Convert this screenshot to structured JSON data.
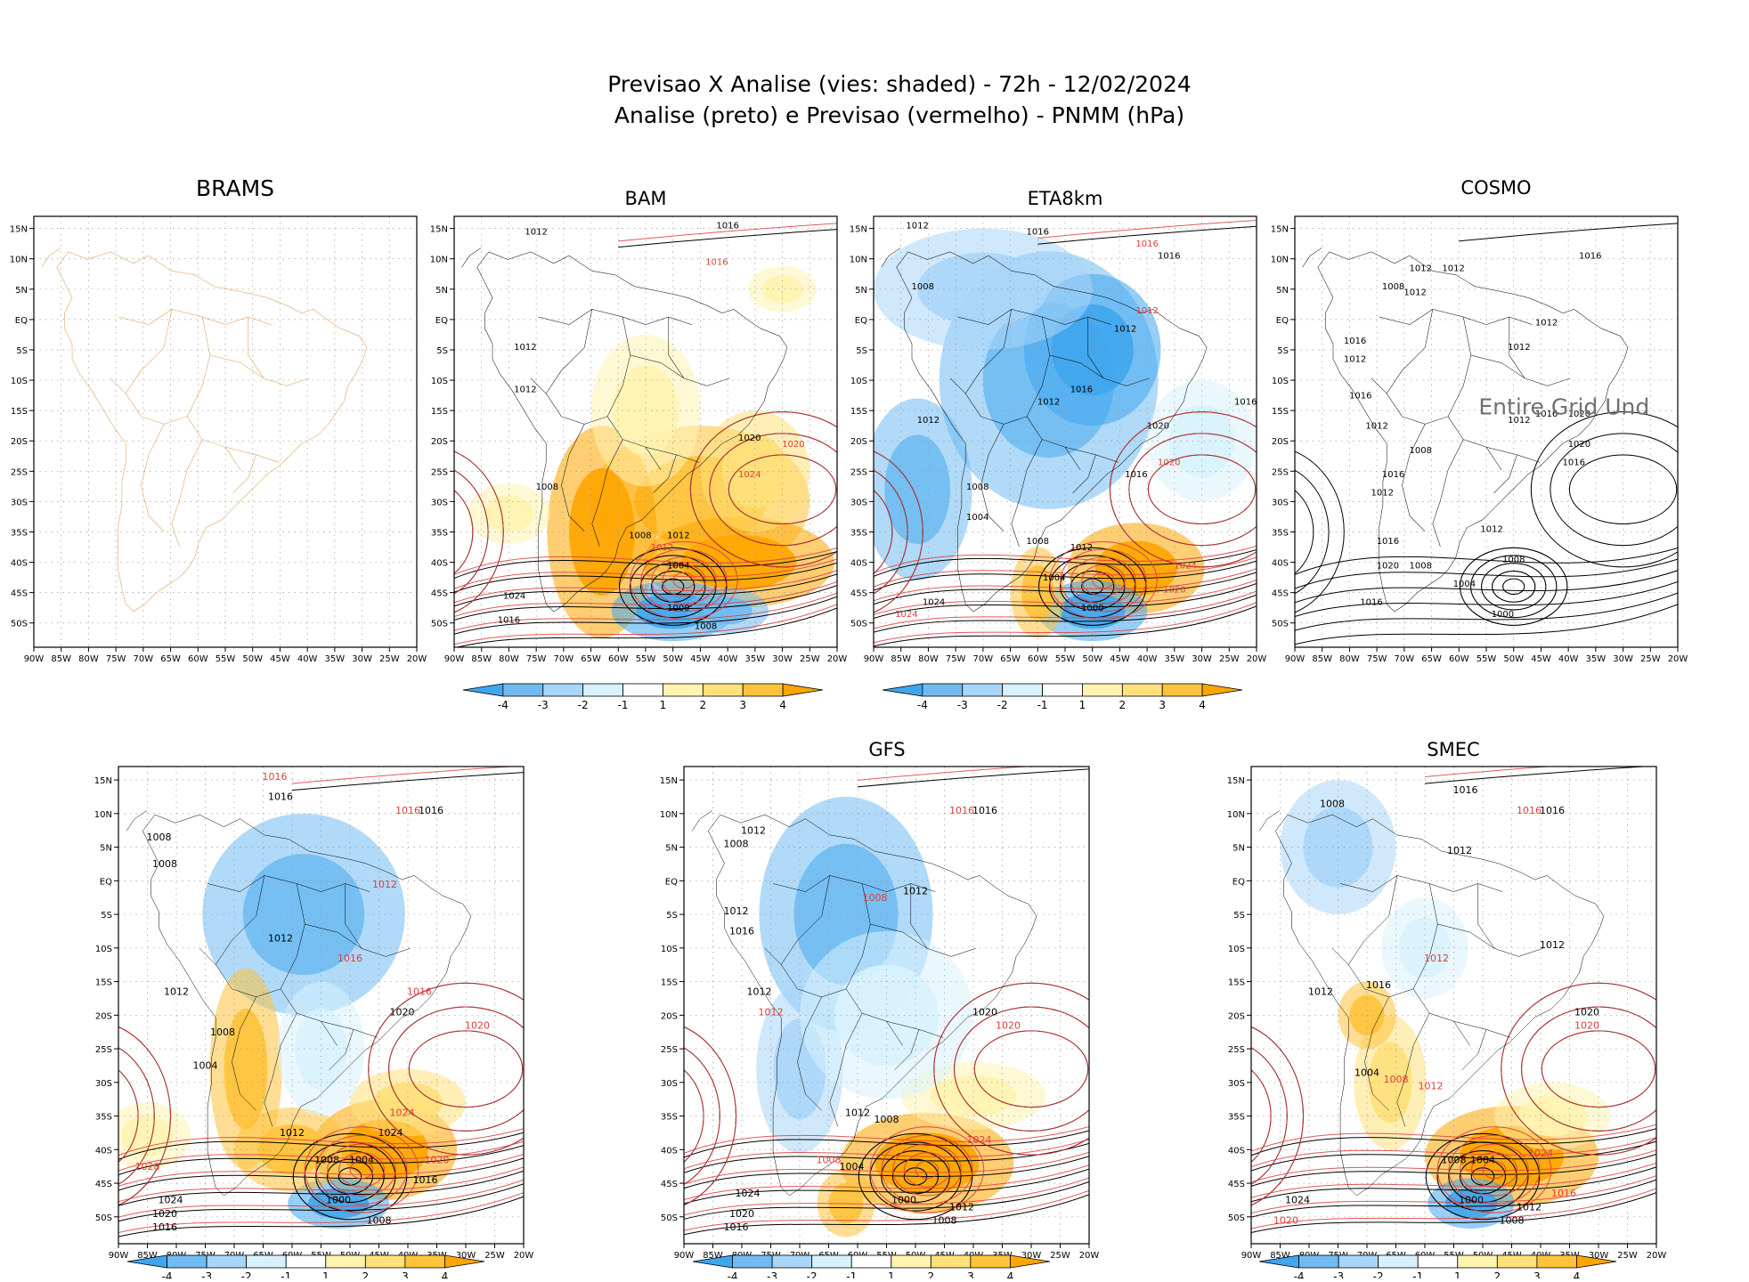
{
  "title": {
    "line1": "Previsao X Analise (vies: shaded) - 72h - 12/02/2024",
    "line2": "Analise (preto) e Previsao (vermelho) - PNMM (hPa)"
  },
  "lat_labels": [
    "15N",
    "10N",
    "5N",
    "EQ",
    "5S",
    "10S",
    "15S",
    "20S",
    "25S",
    "30S",
    "35S",
    "40S",
    "45S",
    "50S"
  ],
  "lon_labels": [
    "90W",
    "85W",
    "80W",
    "75W",
    "70W",
    "65W",
    "60W",
    "55W",
    "50W",
    "45W",
    "40W",
    "35W",
    "30W",
    "25W",
    "20W"
  ],
  "colorbar": {
    "labels": [
      "-4",
      "-3",
      "-2",
      "-1",
      "1",
      "2",
      "3",
      "4"
    ],
    "colors": [
      "#3fa6ee",
      "#6fbbf2",
      "#a9d6f8",
      "#d8f2fd",
      "#ffffff",
      "#fff3b0",
      "#ffe07a",
      "#ffc33b",
      "#ffa500"
    ]
  },
  "colors": {
    "analysis": "#000000",
    "forecast": "#e03c3c",
    "border": "#e09040",
    "note": "#707070"
  },
  "panels": [
    {
      "id": "brams",
      "title": "BRAMS",
      "note": "",
      "labels": []
    },
    {
      "id": "bam",
      "title": "BAM",
      "note": "",
      "labels": [
        {
          "t": "1016",
          "c": "a",
          "x": -40,
          "y": 15
        },
        {
          "t": "1016",
          "c": "f",
          "x": -42,
          "y": 9
        },
        {
          "t": "1012",
          "c": "a",
          "x": -75,
          "y": 14
        },
        {
          "t": "1012",
          "c": "a",
          "x": -77,
          "y": -5
        },
        {
          "t": "1012",
          "c": "a",
          "x": -77,
          "y": -12
        },
        {
          "t": "1020",
          "c": "a",
          "x": -36,
          "y": -20
        },
        {
          "t": "1020",
          "c": "f",
          "x": -28,
          "y": -21
        },
        {
          "t": "1024",
          "c": "f",
          "x": -36,
          "y": -26
        },
        {
          "t": "1008",
          "c": "a",
          "x": -73,
          "y": -28
        },
        {
          "t": "1008",
          "c": "a",
          "x": -56,
          "y": -36
        },
        {
          "t": "1012",
          "c": "a",
          "x": -49,
          "y": -36
        },
        {
          "t": "1004",
          "c": "a",
          "x": -49,
          "y": -41
        },
        {
          "t": "1000",
          "c": "a",
          "x": -49,
          "y": -48
        },
        {
          "t": "1008",
          "c": "a",
          "x": -44,
          "y": -51
        },
        {
          "t": "1024",
          "c": "a",
          "x": -79,
          "y": -46
        },
        {
          "t": "1016",
          "c": "a",
          "x": -80,
          "y": -50
        },
        {
          "t": "1012",
          "c": "f",
          "x": -52,
          "y": -38
        }
      ]
    },
    {
      "id": "eta8km",
      "title": "ETA8km",
      "note": "",
      "labels": [
        {
          "t": "1012",
          "c": "a",
          "x": -82,
          "y": 15
        },
        {
          "t": "1016",
          "c": "a",
          "x": -60,
          "y": 14
        },
        {
          "t": "1016",
          "c": "f",
          "x": -40,
          "y": 12
        },
        {
          "t": "1016",
          "c": "a",
          "x": -36,
          "y": 10
        },
        {
          "t": "1008",
          "c": "a",
          "x": -81,
          "y": 5
        },
        {
          "t": "1012",
          "c": "f",
          "x": -40,
          "y": 1
        },
        {
          "t": "1012",
          "c": "a",
          "x": -44,
          "y": -2
        },
        {
          "t": "1016",
          "c": "a",
          "x": -52,
          "y": -12
        },
        {
          "t": "1012",
          "c": "a",
          "x": -58,
          "y": -14
        },
        {
          "t": "1016",
          "c": "a",
          "x": -22,
          "y": -14
        },
        {
          "t": "1012",
          "c": "a",
          "x": -80,
          "y": -17
        },
        {
          "t": "1020",
          "c": "a",
          "x": -38,
          "y": -18
        },
        {
          "t": "1020",
          "c": "f",
          "x": -36,
          "y": -24
        },
        {
          "t": "1016",
          "c": "a",
          "x": -42,
          "y": -26
        },
        {
          "t": "1008",
          "c": "a",
          "x": -71,
          "y": -28
        },
        {
          "t": "1004",
          "c": "a",
          "x": -71,
          "y": -33
        },
        {
          "t": "1008",
          "c": "a",
          "x": -60,
          "y": -37
        },
        {
          "t": "1012",
          "c": "a",
          "x": -52,
          "y": -38
        },
        {
          "t": "1004",
          "c": "a",
          "x": -57,
          "y": -43
        },
        {
          "t": "1000",
          "c": "a",
          "x": -50,
          "y": -48
        },
        {
          "t": "1024",
          "c": "f",
          "x": -33,
          "y": -41
        },
        {
          "t": "1020",
          "c": "f",
          "x": -35,
          "y": -45
        },
        {
          "t": "1024",
          "c": "a",
          "x": -79,
          "y": -47
        },
        {
          "t": "1024",
          "c": "f",
          "x": -84,
          "y": -49
        }
      ]
    },
    {
      "id": "cosmo",
      "title": "COSMO",
      "note": "Entire Grid Und",
      "labels": [
        {
          "t": "1016",
          "c": "a",
          "x": -36,
          "y": 10
        },
        {
          "t": "1012",
          "c": "a",
          "x": -67,
          "y": 8
        },
        {
          "t": "1012",
          "c": "a",
          "x": -61,
          "y": 8
        },
        {
          "t": "1012",
          "c": "a",
          "x": -68,
          "y": 4
        },
        {
          "t": "1008",
          "c": "a",
          "x": -72,
          "y": 5
        },
        {
          "t": "1012",
          "c": "a",
          "x": -44,
          "y": -1
        },
        {
          "t": "1012",
          "c": "a",
          "x": -49,
          "y": -5
        },
        {
          "t": "1016",
          "c": "a",
          "x": -79,
          "y": -4
        },
        {
          "t": "1012",
          "c": "a",
          "x": -79,
          "y": -7
        },
        {
          "t": "1016",
          "c": "a",
          "x": -78,
          "y": -13
        },
        {
          "t": "1016",
          "c": "a",
          "x": -44,
          "y": -16
        },
        {
          "t": "1012",
          "c": "a",
          "x": -49,
          "y": -17
        },
        {
          "t": "1020",
          "c": "a",
          "x": -38,
          "y": -16
        },
        {
          "t": "1020",
          "c": "a",
          "x": -38,
          "y": -21
        },
        {
          "t": "1016",
          "c": "a",
          "x": -39,
          "y": -24
        },
        {
          "t": "1012",
          "c": "a",
          "x": -75,
          "y": -18
        },
        {
          "t": "1008",
          "c": "a",
          "x": -67,
          "y": -22
        },
        {
          "t": "1016",
          "c": "a",
          "x": -72,
          "y": -26
        },
        {
          "t": "1012",
          "c": "a",
          "x": -74,
          "y": -29
        },
        {
          "t": "1012",
          "c": "a",
          "x": -54,
          "y": -35
        },
        {
          "t": "1016",
          "c": "a",
          "x": -73,
          "y": -37
        },
        {
          "t": "1020",
          "c": "a",
          "x": -73,
          "y": -41
        },
        {
          "t": "1008",
          "c": "a",
          "x": -67,
          "y": -41
        },
        {
          "t": "1008",
          "c": "a",
          "x": -50,
          "y": -40
        },
        {
          "t": "1004",
          "c": "a",
          "x": -59,
          "y": -44
        },
        {
          "t": "1000",
          "c": "a",
          "x": -52,
          "y": -49
        },
        {
          "t": "1016",
          "c": "a",
          "x": -76,
          "y": -47
        }
      ]
    },
    {
      "id": "panel5",
      "title": "",
      "note": "",
      "labels": [
        {
          "t": "1016",
          "c": "f",
          "x": -63,
          "y": 15
        },
        {
          "t": "1016",
          "c": "a",
          "x": -62,
          "y": 12
        },
        {
          "t": "1016",
          "c": "f",
          "x": -40,
          "y": 10
        },
        {
          "t": "1016",
          "c": "a",
          "x": -36,
          "y": 10
        },
        {
          "t": "1008",
          "c": "a",
          "x": -83,
          "y": 6
        },
        {
          "t": "1008",
          "c": "a",
          "x": -82,
          "y": 2
        },
        {
          "t": "1012",
          "c": "f",
          "x": -44,
          "y": -1
        },
        {
          "t": "1012",
          "c": "a",
          "x": -62,
          "y": -9
        },
        {
          "t": "1016",
          "c": "f",
          "x": -50,
          "y": -12
        },
        {
          "t": "1016",
          "c": "f",
          "x": -38,
          "y": -17
        },
        {
          "t": "1012",
          "c": "a",
          "x": -80,
          "y": -17
        },
        {
          "t": "1020",
          "c": "a",
          "x": -41,
          "y": -20
        },
        {
          "t": "1020",
          "c": "f",
          "x": -28,
          "y": -22
        },
        {
          "t": "1008",
          "c": "a",
          "x": -72,
          "y": -23
        },
        {
          "t": "1004",
          "c": "a",
          "x": -75,
          "y": -28
        },
        {
          "t": "1024",
          "c": "f",
          "x": -41,
          "y": -35
        },
        {
          "t": "1012",
          "c": "a",
          "x": -60,
          "y": -38
        },
        {
          "t": "1024",
          "c": "a",
          "x": -43,
          "y": -38
        },
        {
          "t": "1008",
          "c": "a",
          "x": -54,
          "y": -42
        },
        {
          "t": "1004",
          "c": "a",
          "x": -48,
          "y": -42
        },
        {
          "t": "1000",
          "c": "a",
          "x": -52,
          "y": -48
        },
        {
          "t": "1016",
          "c": "a",
          "x": -37,
          "y": -45
        },
        {
          "t": "1020",
          "c": "f",
          "x": -35,
          "y": -42
        },
        {
          "t": "1028",
          "c": "f",
          "x": -85,
          "y": -43
        },
        {
          "t": "1024",
          "c": "a",
          "x": -81,
          "y": -48
        },
        {
          "t": "1020",
          "c": "a",
          "x": -82,
          "y": -50
        },
        {
          "t": "1016",
          "c": "a",
          "x": -82,
          "y": -52
        },
        {
          "t": "1008",
          "c": "a",
          "x": -45,
          "y": -51
        }
      ]
    },
    {
      "id": "gfs",
      "title": "GFS",
      "note": "",
      "labels": [
        {
          "t": "1016",
          "c": "f",
          "x": -42,
          "y": 10
        },
        {
          "t": "1016",
          "c": "a",
          "x": -38,
          "y": 10
        },
        {
          "t": "1012",
          "c": "a",
          "x": -78,
          "y": 7
        },
        {
          "t": "1008",
          "c": "a",
          "x": -81,
          "y": 5
        },
        {
          "t": "1008",
          "c": "f",
          "x": -57,
          "y": -3
        },
        {
          "t": "1012",
          "c": "a",
          "x": -50,
          "y": -2
        },
        {
          "t": "1012",
          "c": "a",
          "x": -81,
          "y": -5
        },
        {
          "t": "1016",
          "c": "a",
          "x": -80,
          "y": -8
        },
        {
          "t": "1012",
          "c": "a",
          "x": -77,
          "y": -17
        },
        {
          "t": "1012",
          "c": "f",
          "x": -75,
          "y": -20
        },
        {
          "t": "1020",
          "c": "a",
          "x": -38,
          "y": -20
        },
        {
          "t": "1020",
          "c": "f",
          "x": -34,
          "y": -22
        },
        {
          "t": "1024",
          "c": "f",
          "x": -39,
          "y": -39
        },
        {
          "t": "1012",
          "c": "a",
          "x": -60,
          "y": -35
        },
        {
          "t": "1008",
          "c": "a",
          "x": -55,
          "y": -36
        },
        {
          "t": "1004",
          "c": "a",
          "x": -61,
          "y": -43
        },
        {
          "t": "1000",
          "c": "a",
          "x": -52,
          "y": -48
        },
        {
          "t": "1012",
          "c": "a",
          "x": -42,
          "y": -49
        },
        {
          "t": "1008",
          "c": "a",
          "x": -45,
          "y": -51
        },
        {
          "t": "1024",
          "c": "a",
          "x": -79,
          "y": -47
        },
        {
          "t": "1020",
          "c": "a",
          "x": -80,
          "y": -50
        },
        {
          "t": "1016",
          "c": "a",
          "x": -81,
          "y": -52
        },
        {
          "t": "1008",
          "c": "f",
          "x": -65,
          "y": -42
        }
      ]
    },
    {
      "id": "smec",
      "title": "SMEC",
      "note": "",
      "labels": [
        {
          "t": "1016",
          "c": "a",
          "x": -53,
          "y": 13
        },
        {
          "t": "1016",
          "c": "f",
          "x": -42,
          "y": 10
        },
        {
          "t": "1016",
          "c": "a",
          "x": -38,
          "y": 10
        },
        {
          "t": "1008",
          "c": "a",
          "x": -76,
          "y": 11
        },
        {
          "t": "1012",
          "c": "a",
          "x": -54,
          "y": 4
        },
        {
          "t": "1012",
          "c": "f",
          "x": -58,
          "y": -12
        },
        {
          "t": "1012",
          "c": "a",
          "x": -38,
          "y": -10
        },
        {
          "t": "1012",
          "c": "a",
          "x": -78,
          "y": -17
        },
        {
          "t": "1016",
          "c": "a",
          "x": -68,
          "y": -16
        },
        {
          "t": "1020",
          "c": "a",
          "x": -32,
          "y": -20
        },
        {
          "t": "1020",
          "c": "f",
          "x": -32,
          "y": -22
        },
        {
          "t": "1008",
          "c": "f",
          "x": -65,
          "y": -30
        },
        {
          "t": "1004",
          "c": "a",
          "x": -70,
          "y": -29
        },
        {
          "t": "1012",
          "c": "f",
          "x": -59,
          "y": -31
        },
        {
          "t": "1024",
          "c": "f",
          "x": -40,
          "y": -41
        },
        {
          "t": "1004",
          "c": "a",
          "x": -50,
          "y": -42
        },
        {
          "t": "1008",
          "c": "a",
          "x": -55,
          "y": -42
        },
        {
          "t": "1000",
          "c": "a",
          "x": -52,
          "y": -48
        },
        {
          "t": "1016",
          "c": "f",
          "x": -36,
          "y": -47
        },
        {
          "t": "1012",
          "c": "a",
          "x": -42,
          "y": -49
        },
        {
          "t": "1008",
          "c": "a",
          "x": -45,
          "y": -51
        },
        {
          "t": "1024",
          "c": "a",
          "x": -82,
          "y": -48
        },
        {
          "t": "1020",
          "c": "f",
          "x": -84,
          "y": -51
        }
      ]
    }
  ]
}
